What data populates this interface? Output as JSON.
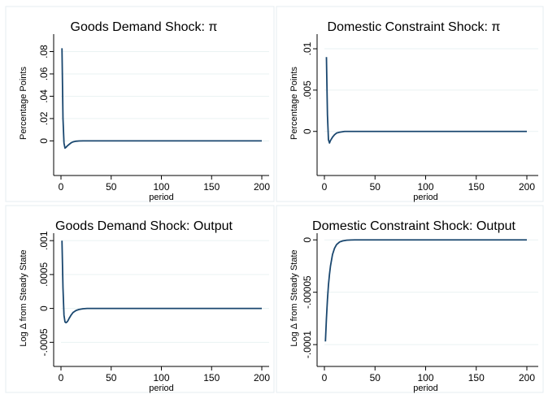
{
  "figure": {
    "colors": {
      "background": "#ffffff",
      "panel_border": "#e6ecf0",
      "grid": "#eaf2f3",
      "line": "#1a476f",
      "axis": "#000000"
    }
  },
  "chart_data": [
    {
      "type": "line",
      "title": "Goods Demand Shock: π",
      "ylabel": "Percentage Points",
      "xlabel": "period",
      "xlim": [
        0,
        200
      ],
      "ylim": [
        -0.007,
        0.084
      ],
      "xticks": [
        0,
        50,
        100,
        150,
        200
      ],
      "xtick_labels": [
        "0",
        "50",
        "100",
        "150",
        "200"
      ],
      "yticks": [
        0,
        0.02,
        0.04,
        0.06,
        0.08
      ],
      "ytick_labels": [
        "0",
        ".02",
        ".04",
        ".06",
        ".08"
      ],
      "grid": true,
      "series": [
        {
          "x": [
            1,
            2,
            3,
            4,
            5,
            6,
            8,
            10,
            12,
            15,
            18,
            22,
            30,
            50,
            100,
            150,
            200
          ],
          "y": [
            0.083,
            0.02,
            -0.002,
            -0.0065,
            -0.0058,
            -0.0048,
            -0.0032,
            -0.0018,
            -0.0009,
            -0.0003,
            -0.0001,
            0,
            0,
            0,
            0,
            0,
            0
          ]
        }
      ]
    },
    {
      "type": "line",
      "title": "Domestic Constraint Shock: π",
      "ylabel": "Percentage Points",
      "xlabel": "period",
      "xlim": [
        0,
        200
      ],
      "ylim": [
        -0.0015,
        0.0102
      ],
      "xticks": [
        0,
        50,
        100,
        150,
        200
      ],
      "xtick_labels": [
        "0",
        "50",
        "100",
        "150",
        "200"
      ],
      "yticks": [
        0,
        0.005,
        0.01
      ],
      "ytick_labels": [
        "0",
        ".005",
        ".01"
      ],
      "grid": true,
      "series": [
        {
          "x": [
            2,
            3,
            4,
            5,
            6,
            8,
            10,
            12,
            15,
            20,
            30,
            50,
            100,
            150,
            200
          ],
          "y": [
            0.009,
            0.002,
            -0.001,
            -0.0014,
            -0.0011,
            -0.0007,
            -0.0004,
            -0.0002,
            -0.0001,
            0,
            0,
            0,
            0,
            0,
            0
          ]
        }
      ]
    },
    {
      "type": "line",
      "title": "Goods Demand Shock: Output",
      "ylabel": "Log Δ from Steady State",
      "xlabel": "period",
      "xlim": [
        0,
        200
      ],
      "ylim": [
        -0.00058,
        0.00105
      ],
      "xticks": [
        0,
        50,
        100,
        150,
        200
      ],
      "xtick_labels": [
        "0",
        "50",
        "100",
        "150",
        "200"
      ],
      "yticks": [
        -0.0005,
        0,
        0.0005,
        0.001
      ],
      "ytick_labels": [
        "-.0005",
        "0",
        ".0005",
        ".001"
      ],
      "grid": true,
      "series": [
        {
          "x": [
            1,
            2,
            3,
            4,
            5,
            6,
            7,
            8,
            10,
            12,
            15,
            18,
            22,
            26,
            30,
            50,
            100,
            150,
            200
          ],
          "y": [
            0.001,
            0.0003,
            -0.0001,
            -0.0002,
            -0.00021,
            -0.0002,
            -0.00018,
            -0.00015,
            -0.0001,
            -6e-05,
            -3e-05,
            -1.5e-05,
            -5e-06,
            0,
            0,
            0,
            0,
            0,
            0
          ]
        }
      ]
    },
    {
      "type": "line",
      "title": "Domestic Constraint Shock: Output",
      "ylabel": "Log Δ from Steady State",
      "xlabel": "period",
      "xlim": [
        0,
        200
      ],
      "ylim": [
        -0.000103,
        2.5e-06
      ],
      "xticks": [
        0,
        50,
        100,
        150,
        200
      ],
      "xtick_labels": [
        "0",
        "50",
        "100",
        "150",
        "200"
      ],
      "yticks": [
        -0.0001,
        -5e-05,
        0
      ],
      "ytick_labels": [
        "-.0001",
        "-.00005",
        "0"
      ],
      "grid": true,
      "series": [
        {
          "x": [
            1,
            2,
            3,
            4,
            5,
            6,
            8,
            10,
            12,
            15,
            18,
            22,
            26,
            30,
            40,
            50,
            100,
            150,
            200
          ],
          "y": [
            -9.7e-05,
            -7.5e-05,
            -5.7e-05,
            -4.3e-05,
            -3.3e-05,
            -2.5e-05,
            -1.4e-05,
            -8e-06,
            -4.5e-06,
            -2e-06,
            -1e-06,
            -3e-07,
            -1e-07,
            0,
            0,
            0,
            0,
            0,
            0
          ]
        }
      ]
    }
  ]
}
